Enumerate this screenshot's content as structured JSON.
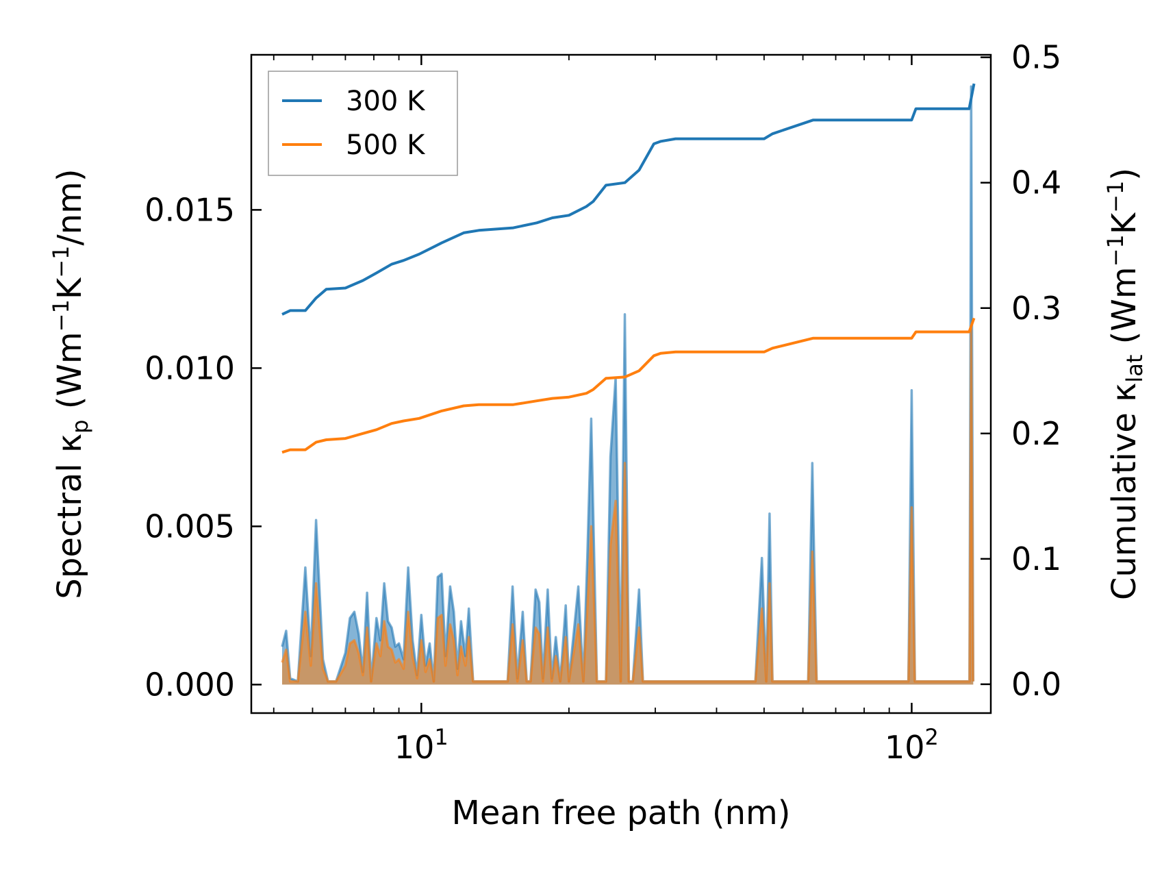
{
  "chart_data": {
    "type": "line",
    "xscale": "log",
    "xlabel": "Mean free path (nm)",
    "ylabel_left": {
      "main": "Spectral κ",
      "sub": "p",
      "unit_open": " (Wm",
      "sup1": "−1",
      "unit_mid": "K",
      "sup2": "−1",
      "unit_close": "/nm)"
    },
    "ylabel_right": {
      "main": "Cumulative κ",
      "sub": "lat",
      "unit_open": " (Wm",
      "sup1": "−1",
      "unit_mid": "K",
      "sup2": "−1",
      "unit_close": ")"
    },
    "xlim": [
      4.5,
      145
    ],
    "ylim_left": [
      -0.0009,
      0.0199
    ],
    "ylim_right": [
      -0.023,
      0.502
    ],
    "xticks": [
      {
        "value": 10,
        "base": "10",
        "exp": "1"
      },
      {
        "value": 100,
        "base": "10",
        "exp": "2"
      }
    ],
    "yticks_left": [
      {
        "value": 0.0,
        "label": "0.000"
      },
      {
        "value": 0.005,
        "label": "0.005"
      },
      {
        "value": 0.01,
        "label": "0.010"
      },
      {
        "value": 0.015,
        "label": "0.015"
      }
    ],
    "yticks_right": [
      {
        "value": 0.0,
        "label": "0.0"
      },
      {
        "value": 0.1,
        "label": "0.1"
      },
      {
        "value": 0.2,
        "label": "0.2"
      },
      {
        "value": 0.3,
        "label": "0.3"
      },
      {
        "value": 0.4,
        "label": "0.4"
      },
      {
        "value": 0.5,
        "label": "0.5"
      }
    ],
    "legend": {
      "position": "top-left",
      "entries": [
        "300 K",
        "500 K"
      ]
    },
    "colors": {
      "300 K": "#1f77b4",
      "500 K": "#ff7f0e"
    },
    "cumulative": [
      {
        "name": "300 K",
        "axis": "right",
        "x": [
          5.2,
          5.4,
          5.8,
          6.1,
          6.4,
          7.0,
          7.6,
          8.1,
          8.7,
          9.2,
          9.9,
          11.0,
          12.2,
          13.1,
          15.4,
          17.2,
          18.5,
          20.0,
          21.7,
          22.4,
          23.8,
          26.0,
          27.8,
          29.8,
          30.8,
          33.0,
          40.0,
          50.0,
          52.0,
          63.0,
          80.0,
          100.0,
          102.0,
          120.0,
          131.0,
          134.0
        ],
        "y": [
          0.295,
          0.298,
          0.298,
          0.308,
          0.315,
          0.316,
          0.322,
          0.328,
          0.335,
          0.338,
          0.343,
          0.352,
          0.36,
          0.362,
          0.364,
          0.368,
          0.372,
          0.374,
          0.381,
          0.385,
          0.398,
          0.4,
          0.41,
          0.431,
          0.433,
          0.435,
          0.435,
          0.435,
          0.439,
          0.45,
          0.45,
          0.45,
          0.459,
          0.459,
          0.459,
          0.479
        ]
      },
      {
        "name": "500 K",
        "axis": "right",
        "x": [
          5.2,
          5.4,
          5.8,
          6.1,
          6.4,
          7.0,
          7.6,
          8.1,
          8.7,
          9.2,
          9.9,
          11.0,
          12.2,
          13.1,
          15.4,
          17.2,
          18.5,
          20.0,
          21.7,
          22.4,
          23.8,
          26.0,
          27.8,
          29.8,
          30.8,
          33.0,
          40.0,
          50.0,
          52.0,
          63.0,
          80.0,
          100.0,
          102.0,
          120.0,
          131.0,
          134.0
        ],
        "y": [
          0.185,
          0.187,
          0.187,
          0.193,
          0.195,
          0.196,
          0.2,
          0.203,
          0.208,
          0.21,
          0.212,
          0.218,
          0.222,
          0.223,
          0.223,
          0.226,
          0.228,
          0.229,
          0.232,
          0.235,
          0.244,
          0.245,
          0.25,
          0.262,
          0.264,
          0.265,
          0.265,
          0.265,
          0.268,
          0.276,
          0.276,
          0.276,
          0.281,
          0.281,
          0.281,
          0.292
        ]
      }
    ],
    "spectral": [
      {
        "name": "300 K",
        "axis": "left",
        "x": [
          5.2,
          5.3,
          5.4,
          5.6,
          5.8,
          5.95,
          6.1,
          6.3,
          6.45,
          6.6,
          6.7,
          7.0,
          7.15,
          7.3,
          7.45,
          7.6,
          7.75,
          7.9,
          8.1,
          8.25,
          8.4,
          8.55,
          8.7,
          8.85,
          9.0,
          9.2,
          9.4,
          9.6,
          9.8,
          10.0,
          10.2,
          10.4,
          10.6,
          10.8,
          11.0,
          11.2,
          11.45,
          11.65,
          11.85,
          12.05,
          12.3,
          12.5,
          12.75,
          13.0,
          13.25,
          13.5,
          13.6,
          15.0,
          15.35,
          15.7,
          16.1,
          16.4,
          16.7,
          17.1,
          17.4,
          17.7,
          18.1,
          18.45,
          18.8,
          19.2,
          19.7,
          20.0,
          20.9,
          21.4,
          21.8,
          22.2,
          22.8,
          23.3,
          23.8,
          24.3,
          24.9,
          25.5,
          26.0,
          26.5,
          27.0,
          27.8,
          28.3,
          28.8,
          29.3,
          29.8,
          30.3,
          30.8,
          31.6,
          32.5,
          33.0,
          33.5,
          34.0,
          48.0,
          49.5,
          50.5,
          51.3,
          52.0,
          52.7,
          53.5,
          60.0,
          61.5,
          62.7,
          64.0,
          65.5,
          97.0,
          98.5,
          100.0,
          101.5,
          103.0,
          130.0,
          131.2,
          132.2,
          133.5
        ],
        "y": [
          0.0012,
          0.0017,
          0.0002,
          0.0001,
          0.0037,
          0.0009,
          0.0052,
          0.0008,
          0.0001,
          0.0001,
          0.0001,
          0.001,
          0.0021,
          0.0023,
          0.0016,
          0.0004,
          0.0029,
          0.0001,
          0.0021,
          0.0014,
          0.0032,
          0.002,
          0.0018,
          0.0012,
          0.0013,
          0.0008,
          0.0037,
          0.0014,
          0.0003,
          0.0022,
          0.0006,
          0.0013,
          0.0001,
          0.0034,
          0.0035,
          0.0009,
          0.0031,
          0.0023,
          0.0005,
          0.002,
          0.0009,
          0.0024,
          0.0001,
          0.0001,
          0.0001,
          0.0001,
          0.0001,
          0.0001,
          0.0031,
          0.0002,
          0.0023,
          0.0001,
          0.0001,
          0.003,
          0.0026,
          0.0002,
          0.003,
          0.0002,
          0.0015,
          0.0001,
          0.0025,
          0.0001,
          0.0031,
          0.0001,
          0.004,
          0.0084,
          0.0001,
          0.0001,
          0.0001,
          0.0072,
          0.0097,
          0.0001,
          0.0117,
          0.0001,
          0.0001,
          0.003,
          0.0001,
          0.0001,
          0.0001,
          0.0001,
          0.0001,
          0.0001,
          0.0001,
          0.0001,
          0.0001,
          0.0001,
          0.0001,
          0.0001,
          0.004,
          0.0001,
          0.0054,
          0.0001,
          0.0001,
          0.0001,
          0.0001,
          0.0001,
          0.007,
          0.0001,
          0.0001,
          0.0001,
          0.0001,
          0.0093,
          0.0001,
          0.0001,
          0.0001,
          0.0001,
          0.0189,
          0.0001
        ]
      },
      {
        "name": "500 K",
        "axis": "left",
        "x": [
          5.2,
          5.3,
          5.4,
          5.6,
          5.8,
          5.95,
          6.1,
          6.3,
          6.45,
          6.6,
          6.7,
          7.0,
          7.15,
          7.3,
          7.45,
          7.6,
          7.75,
          7.9,
          8.1,
          8.25,
          8.4,
          8.55,
          8.7,
          8.85,
          9.0,
          9.2,
          9.4,
          9.6,
          9.8,
          10.0,
          10.2,
          10.4,
          10.6,
          10.8,
          11.0,
          11.2,
          11.45,
          11.65,
          11.85,
          12.05,
          12.3,
          12.5,
          12.75,
          13.0,
          13.25,
          13.5,
          13.6,
          15.0,
          15.35,
          15.7,
          16.1,
          16.4,
          16.7,
          17.1,
          17.4,
          17.7,
          18.1,
          18.45,
          18.8,
          19.2,
          19.7,
          20.0,
          20.9,
          21.4,
          21.8,
          22.2,
          22.8,
          23.3,
          23.8,
          24.3,
          24.9,
          25.5,
          26.0,
          26.5,
          27.0,
          27.8,
          28.3,
          28.8,
          29.3,
          29.8,
          30.3,
          30.8,
          31.6,
          32.5,
          33.0,
          33.5,
          34.0,
          48.0,
          49.5,
          50.5,
          51.3,
          52.0,
          52.7,
          53.5,
          60.0,
          61.5,
          62.7,
          64.0,
          65.5,
          97.0,
          98.5,
          100.0,
          101.5,
          103.0,
          130.0,
          131.2,
          132.2,
          133.5
        ],
        "y": [
          0.0007,
          0.0011,
          0.0001,
          0.0001,
          0.0023,
          0.0006,
          0.0032,
          0.0005,
          0.0001,
          0.0001,
          0.0001,
          0.0006,
          0.0013,
          0.0014,
          0.001,
          0.0003,
          0.0018,
          0.0001,
          0.0013,
          0.0009,
          0.002,
          0.0012,
          0.0011,
          0.0007,
          0.0008,
          0.0005,
          0.0023,
          0.0009,
          0.0002,
          0.0014,
          0.0004,
          0.0008,
          0.0001,
          0.0021,
          0.0022,
          0.0006,
          0.0019,
          0.0014,
          0.0003,
          0.0012,
          0.0006,
          0.0015,
          0.0001,
          0.0001,
          0.0001,
          0.0001,
          0.0001,
          0.0001,
          0.0019,
          0.0001,
          0.0014,
          0.0001,
          0.0001,
          0.0018,
          0.0016,
          0.0001,
          0.0018,
          0.0001,
          0.0009,
          0.0001,
          0.0015,
          0.0001,
          0.0019,
          0.0001,
          0.0024,
          0.005,
          0.0001,
          0.0001,
          0.0001,
          0.0044,
          0.0058,
          0.0001,
          0.007,
          0.0001,
          0.0001,
          0.0018,
          0.0001,
          0.0001,
          0.0001,
          0.0001,
          0.0001,
          0.0001,
          0.0001,
          0.0001,
          0.0001,
          0.0001,
          0.0001,
          0.0001,
          0.0024,
          0.0001,
          0.0032,
          0.0001,
          0.0001,
          0.0001,
          0.0001,
          0.0001,
          0.0042,
          0.0001,
          0.0001,
          0.0001,
          0.0001,
          0.0056,
          0.0001,
          0.0001,
          0.0001,
          0.0001,
          0.0113,
          0.0001
        ]
      }
    ]
  }
}
